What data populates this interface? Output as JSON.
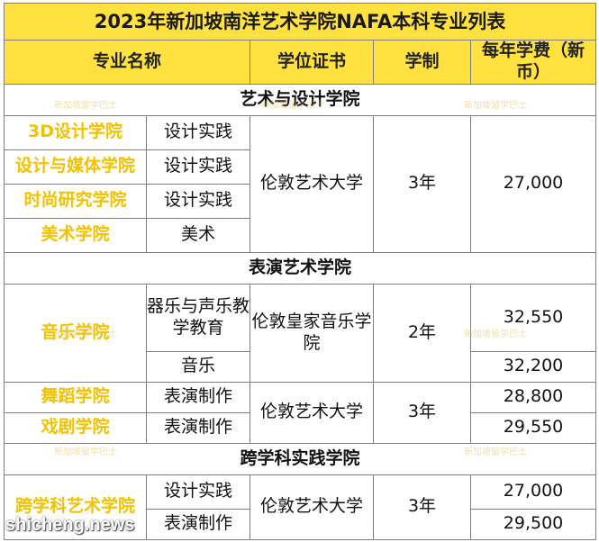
{
  "title": "2023年新加坡南洋艺术学院NAFA本科专业列表",
  "headers": [
    "专业名称",
    "学位证书",
    "学制",
    "每年学费（新币）"
  ],
  "sections": [
    {
      "name": "艺术与设计学院",
      "rows": [
        {
          "school": "3D设计学院",
          "major": "设计实践"
        },
        {
          "school": "设计与媒体学院",
          "major": "设计实践"
        },
        {
          "school": "时尚研究学院",
          "major": "设计实践"
        },
        {
          "school": "美术学院",
          "major": "美术"
        }
      ],
      "degree": "伦敦艺术大学",
      "duration": "3年",
      "fee": "27,000"
    },
    {
      "name": "表演艺术学院",
      "music": {
        "school": "音乐学院",
        "majors": [
          "器乐与声乐教学教育",
          "音乐"
        ],
        "degree": "伦敦皇家音乐学院",
        "duration": "2年",
        "fees": [
          "32,550",
          "32,200"
        ]
      },
      "rows": [
        {
          "school": "舞蹈学院",
          "major": "表演制作",
          "fee": "28,800"
        },
        {
          "school": "戏剧学院",
          "major": "表演制作",
          "fee": "29,550"
        }
      ],
      "degree": "伦敦艺术大学",
      "duration": "3年"
    },
    {
      "name": "跨学科实践学院",
      "school": "跨学科艺术学院",
      "rows": [
        {
          "major": "设计实践",
          "fee": "27,000"
        },
        {
          "major": "表演制作",
          "fee": "29,500"
        }
      ],
      "degree": "伦敦艺术大学",
      "duration": "3年"
    }
  ],
  "watermark": "新加坡留学巴士",
  "site": "shicheng.news"
}
